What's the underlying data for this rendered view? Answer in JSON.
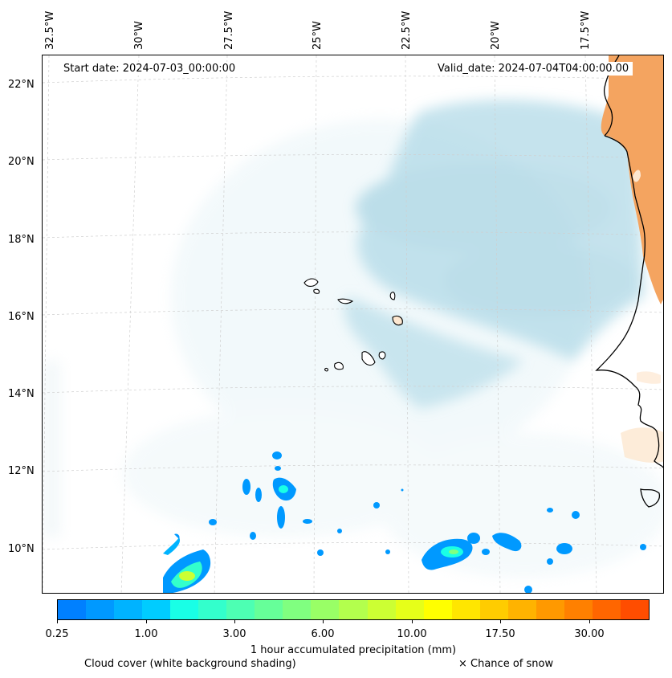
{
  "map": {
    "start_date": "Start date: 2024-07-03_00:00:00",
    "valid_date": "Valid_date: 2024-07-04T04:00:00.00",
    "lon_labels": [
      "32.5°W",
      "30°W",
      "27.5°W",
      "25°W",
      "22.5°W",
      "20°W",
      "17.5°W"
    ],
    "lat_labels": [
      "22°N",
      "20°N",
      "18°N",
      "16°N",
      "14°N",
      "12°N",
      "10°N"
    ],
    "land_color": "#f4a460",
    "cloud_color": "#add8e6"
  },
  "colorbar": {
    "label": "1 hour accumulated precipitation (mm)",
    "ticks": [
      "0.25",
      "1.00",
      "3.00",
      "6.00",
      "10.00",
      "17.50",
      "30.00"
    ],
    "colors": [
      "#0080ff",
      "#0099ff",
      "#00b3ff",
      "#00ccff",
      "#19ffe6",
      "#33ffcc",
      "#4dffb3",
      "#66ff99",
      "#80ff80",
      "#99ff66",
      "#b3ff4d",
      "#ccff33",
      "#e6ff19",
      "#ffff00",
      "#ffe600",
      "#ffcc00",
      "#ffb300",
      "#ff9900",
      "#ff8000",
      "#ff6600",
      "#ff4d00"
    ]
  },
  "legend": {
    "cloud_cover": "Cloud cover (white background shading)",
    "snow": "× Chance of snow"
  }
}
